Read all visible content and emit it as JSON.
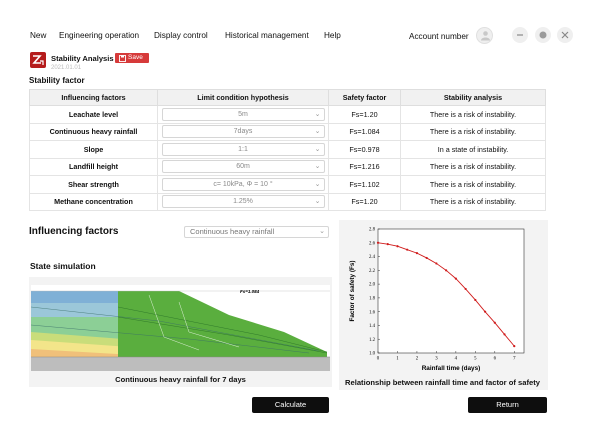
{
  "menu": {
    "items": [
      "New",
      "Engineering operation",
      "Display control",
      "Historical management",
      "Help"
    ],
    "account_label": "Account number"
  },
  "app": {
    "title": "Stability Analysis",
    "date": "2021.01.01",
    "save_label": "Save"
  },
  "stability": {
    "section_title": "Stability factor",
    "headers": [
      "Influencing factors",
      "Limit condition hypothesis",
      "Safety factor",
      "Stability analysis"
    ],
    "rows": [
      {
        "factor": "Leachate level",
        "hypothesis": "5m",
        "fs": "Fs=1.20",
        "analysis": "There is a risk of instability."
      },
      {
        "factor": "Continuous heavy rainfall",
        "hypothesis": "7days",
        "fs": "Fs=1.084",
        "analysis": "There is a risk of instability."
      },
      {
        "factor": "Slope",
        "hypothesis": "1:1",
        "fs": "Fs=0.978",
        "analysis": "In a state of instability."
      },
      {
        "factor": "Landfill height",
        "hypothesis": "60m",
        "fs": "Fs=1.216",
        "analysis": "There is a risk of instability."
      },
      {
        "factor": "Shear strength",
        "hypothesis": "c= 10kPa, Φ = 10 °",
        "fs": "Fs=1.102",
        "analysis": "There is a risk of instability."
      },
      {
        "factor": "Methane concentration",
        "hypothesis": "1.25%",
        "fs": "Fs=1.20",
        "analysis": "There is a risk of instability."
      }
    ]
  },
  "influencing": {
    "title": "Influencing factors",
    "selected": "Continuous heavy rainfall"
  },
  "simulation": {
    "title": "State simulation",
    "fs_label": "Fs=1.084",
    "caption": "Continuous heavy rainfall for 7 days"
  },
  "chart_caption": "Relationship between  rainfall time and factor of safety",
  "buttons": {
    "calculate": "Calculate",
    "return": "Return"
  },
  "chart_data": {
    "type": "line",
    "xlabel": "Rainfall time (days)",
    "ylabel": "Factor of safety (Fs)",
    "xlim": [
      0,
      7.5
    ],
    "ylim": [
      1.0,
      2.8
    ],
    "x_ticks": [
      0,
      1,
      2,
      3,
      4,
      5,
      6,
      7
    ],
    "y_ticks": [
      1.0,
      1.2,
      1.4,
      1.6,
      1.8,
      2.0,
      2.2,
      2.4,
      2.6,
      2.8
    ],
    "grid": false,
    "series": [
      {
        "color": "#d01c1c",
        "x": [
          0,
          0.5,
          1.0,
          1.5,
          2.0,
          2.5,
          3.0,
          3.5,
          4.0,
          4.5,
          5.0,
          5.5,
          6.0,
          6.5,
          7.0
        ],
        "y": [
          2.6,
          2.58,
          2.55,
          2.5,
          2.45,
          2.38,
          2.3,
          2.2,
          2.08,
          1.93,
          1.77,
          1.6,
          1.44,
          1.27,
          1.1
        ]
      }
    ]
  }
}
